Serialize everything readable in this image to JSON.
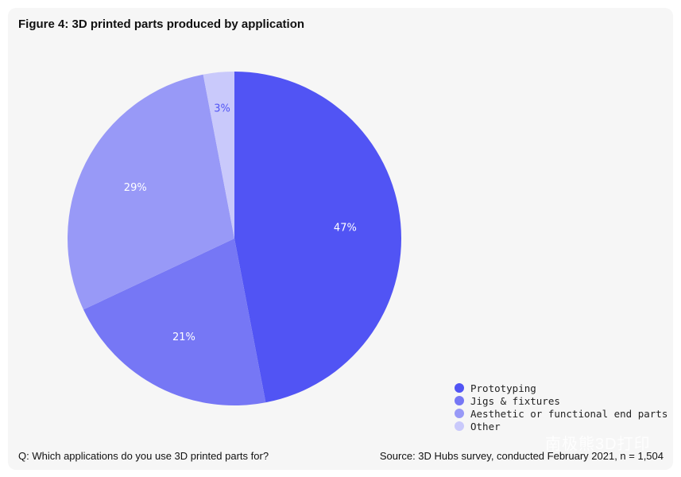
{
  "chart_data": {
    "type": "pie",
    "title": "Figure 4: 3D printed parts produced by application",
    "slices": [
      {
        "label": "Prototyping",
        "value": 47,
        "display": "47%",
        "color": "#5154f4",
        "label_color": "#ffffff"
      },
      {
        "label": "Jigs & fixtures",
        "value": 21,
        "display": "21%",
        "color": "#7677f5",
        "label_color": "#ffffff"
      },
      {
        "label": "Aesthetic or functional end parts",
        "value": 29,
        "display": "29%",
        "color": "#9899f7",
        "label_color": "#ffffff"
      },
      {
        "label": "Other",
        "value": 3,
        "display": "3%",
        "color": "#c9c9fb",
        "label_color": "#5154f4"
      }
    ],
    "start_angle": "12 o'clock",
    "direction": "clockwise",
    "legend_position": "bottom-right"
  },
  "footer": {
    "question": "Q: Which applications do you use 3D printed parts for?",
    "source": "Source: 3D Hubs survey, conducted February 2021, n = 1,504"
  },
  "watermark": "南极熊3D打印"
}
